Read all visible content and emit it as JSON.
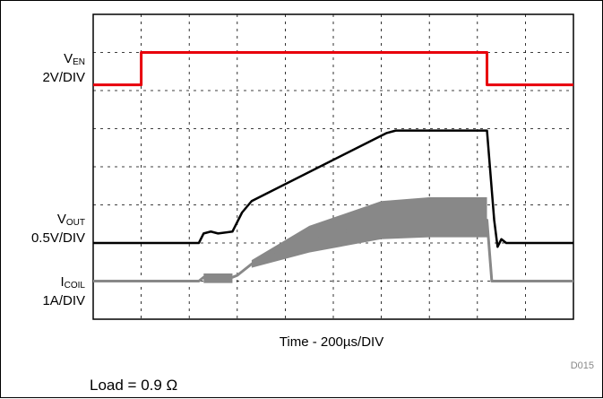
{
  "chart_data": {
    "type": "line",
    "xlabel": "Time - 200µs/DIV",
    "grid": true,
    "divisions": {
      "x": 10,
      "y": 8
    },
    "x_range_div": [
      0,
      10
    ],
    "series": [
      {
        "name": "EN",
        "label_main": "V",
        "label_sub": "EN",
        "scale": "2V/DIV",
        "color": "#e8000b",
        "points": [
          [
            0,
            6.15
          ],
          [
            1.0,
            6.15
          ],
          [
            1.0,
            7.0
          ],
          [
            8.2,
            7.0
          ],
          [
            8.2,
            6.15
          ],
          [
            10,
            6.15
          ]
        ]
      },
      {
        "name": "OUT",
        "label_main": "V",
        "label_sub": "OUT",
        "scale": "0.5V/DIV",
        "color": "#000000",
        "points": [
          [
            0,
            2.0
          ],
          [
            2.2,
            2.0
          ],
          [
            2.3,
            2.25
          ],
          [
            2.45,
            2.3
          ],
          [
            2.6,
            2.25
          ],
          [
            2.9,
            2.3
          ],
          [
            3.1,
            2.8
          ],
          [
            3.3,
            3.1
          ],
          [
            6.1,
            4.88
          ],
          [
            6.3,
            4.95
          ],
          [
            8.2,
            4.95
          ],
          [
            8.35,
            2.6
          ],
          [
            8.42,
            1.9
          ],
          [
            8.5,
            2.1
          ],
          [
            8.6,
            2.0
          ],
          [
            10,
            2.0
          ]
        ]
      },
      {
        "name": "COIL",
        "label_main": "I",
        "label_sub": "COIL",
        "scale": "1A/DIV",
        "color": "#888888",
        "points": [
          [
            0,
            1.0
          ],
          [
            2.2,
            1.0
          ],
          [
            2.3,
            1.1
          ],
          [
            2.9,
            1.1
          ],
          [
            3.0,
            1.15
          ],
          [
            3.3,
            1.45
          ],
          [
            4.5,
            2.05
          ],
          [
            6.0,
            2.55
          ],
          [
            7.0,
            2.6
          ],
          [
            8.2,
            2.6
          ],
          [
            8.3,
            1.0
          ],
          [
            10,
            1.0
          ]
        ],
        "ripple_band": true
      }
    ]
  },
  "footer": {
    "figure_id": "D015",
    "load_note": "Load = 0.9 Ω"
  }
}
